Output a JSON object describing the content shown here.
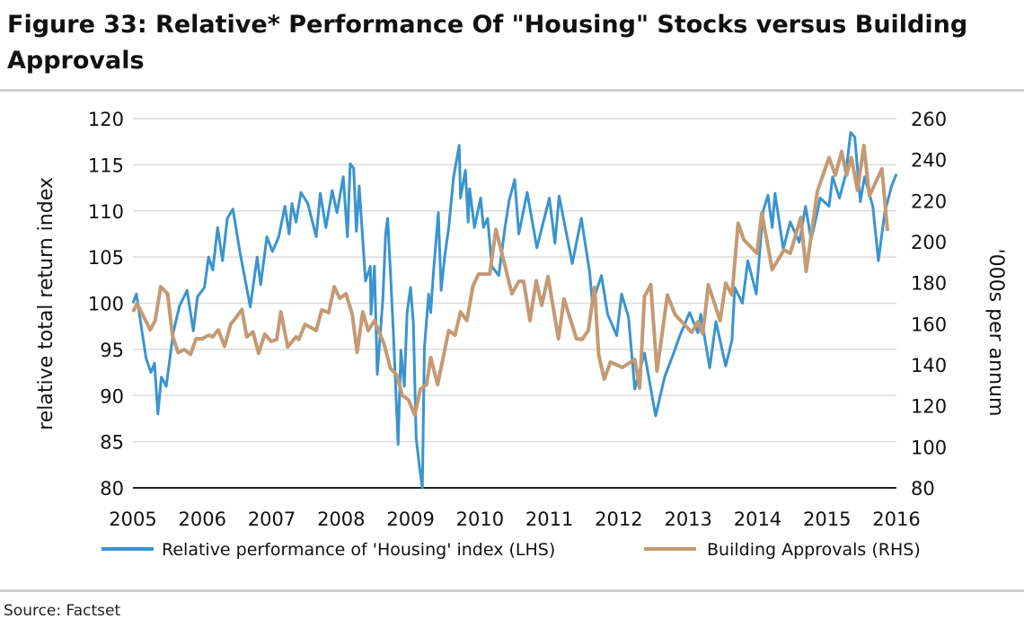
{
  "chart_data": {
    "type": "line",
    "title": "Figure 33: Relative* Performance Of \"Housing\" Stocks versus Building Approvals",
    "ylabel": "relative total return index",
    "y2label": "'000s per annum",
    "xlim": [
      2005,
      2016
    ],
    "ylim": [
      80,
      120
    ],
    "y2lim": [
      80,
      260
    ],
    "x_ticks": [
      "2005",
      "2006",
      "2007",
      "2008",
      "2009",
      "2010",
      "2011",
      "2012",
      "2013",
      "2014",
      "2015",
      "2016"
    ],
    "y_ticks": [
      "120",
      "115",
      "110",
      "105",
      "100",
      "95",
      "90",
      "85",
      "80"
    ],
    "y2_ticks": [
      "260",
      "240",
      "220",
      "200",
      "180",
      "160",
      "140",
      "120",
      "100",
      "80"
    ],
    "grid": true,
    "legend_position": "bottom",
    "series": [
      {
        "name": "Relative performance of 'Housing' index (LHS)",
        "axis": "left",
        "color": "#3a94cf",
        "points": [
          [
            2005.0,
            100
          ],
          [
            2005.05,
            101
          ],
          [
            2005.13,
            97
          ],
          [
            2005.19,
            94
          ],
          [
            2005.26,
            92.5
          ],
          [
            2005.31,
            93.5
          ],
          [
            2005.36,
            88
          ],
          [
            2005.41,
            92
          ],
          [
            2005.48,
            91
          ],
          [
            2005.58,
            96.8
          ],
          [
            2005.67,
            99.7
          ],
          [
            2005.78,
            101.4
          ],
          [
            2005.87,
            97
          ],
          [
            2005.93,
            100.7
          ],
          [
            2006.03,
            101.7
          ],
          [
            2006.09,
            105
          ],
          [
            2006.15,
            103.6
          ],
          [
            2006.22,
            108.2
          ],
          [
            2006.29,
            104.6
          ],
          [
            2006.36,
            109.2
          ],
          [
            2006.44,
            110.2
          ],
          [
            2006.54,
            105.6
          ],
          [
            2006.62,
            102.4
          ],
          [
            2006.69,
            99.6
          ],
          [
            2006.79,
            105
          ],
          [
            2006.84,
            102
          ],
          [
            2006.93,
            107.2
          ],
          [
            2007.01,
            105.6
          ],
          [
            2007.1,
            107.2
          ],
          [
            2007.19,
            110.5
          ],
          [
            2007.25,
            107.5
          ],
          [
            2007.29,
            110.8
          ],
          [
            2007.35,
            108.8
          ],
          [
            2007.42,
            112
          ],
          [
            2007.52,
            110.8
          ],
          [
            2007.64,
            107.2
          ],
          [
            2007.7,
            111.9
          ],
          [
            2007.78,
            108.2
          ],
          [
            2007.87,
            112.2
          ],
          [
            2007.94,
            109.8
          ],
          [
            2008.03,
            113.7
          ],
          [
            2008.09,
            107.2
          ],
          [
            2008.13,
            115.1
          ],
          [
            2008.18,
            114.6
          ],
          [
            2008.22,
            107.8
          ],
          [
            2008.26,
            112.7
          ],
          [
            2008.35,
            102.4
          ],
          [
            2008.42,
            104
          ],
          [
            2008.43,
            98.8
          ],
          [
            2008.48,
            104
          ],
          [
            2008.52,
            92.3
          ],
          [
            2008.6,
            100.4
          ],
          [
            2008.64,
            107.5
          ],
          [
            2008.67,
            109.2
          ],
          [
            2008.71,
            103.3
          ],
          [
            2008.75,
            97.1
          ],
          [
            2008.82,
            84.7
          ],
          [
            2008.86,
            94.9
          ],
          [
            2008.91,
            91
          ],
          [
            2008.95,
            99
          ],
          [
            2009.0,
            101.7
          ],
          [
            2009.04,
            97.8
          ],
          [
            2009.08,
            85.4
          ],
          [
            2009.13,
            82.2
          ],
          [
            2009.17,
            80
          ],
          [
            2009.2,
            95.2
          ],
          [
            2009.26,
            101
          ],
          [
            2009.29,
            99
          ],
          [
            2009.33,
            103.4
          ],
          [
            2009.4,
            109.8
          ],
          [
            2009.44,
            101.4
          ],
          [
            2009.49,
            105
          ],
          [
            2009.55,
            108.2
          ],
          [
            2009.62,
            113.7
          ],
          [
            2009.7,
            117.1
          ],
          [
            2009.72,
            111.4
          ],
          [
            2009.79,
            114.4
          ],
          [
            2009.83,
            108.8
          ],
          [
            2009.85,
            112.4
          ],
          [
            2009.92,
            108.2
          ],
          [
            2010.01,
            111.4
          ],
          [
            2010.05,
            108.2
          ],
          [
            2010.11,
            109.2
          ],
          [
            2010.17,
            104
          ],
          [
            2010.27,
            103
          ],
          [
            2010.36,
            108.2
          ],
          [
            2010.42,
            111.1
          ],
          [
            2010.5,
            113.4
          ],
          [
            2010.56,
            107.5
          ],
          [
            2010.68,
            112
          ],
          [
            2010.82,
            106
          ],
          [
            2011.0,
            111.4
          ],
          [
            2011.08,
            106.5
          ],
          [
            2011.14,
            111.6
          ],
          [
            2011.33,
            104.3
          ],
          [
            2011.46,
            109.2
          ],
          [
            2011.58,
            103.3
          ],
          [
            2011.62,
            100
          ],
          [
            2011.75,
            103
          ],
          [
            2011.84,
            98.8
          ],
          [
            2011.97,
            96.5
          ],
          [
            2012.04,
            101
          ],
          [
            2012.14,
            98.5
          ],
          [
            2012.23,
            90.7
          ],
          [
            2012.37,
            94.6
          ],
          [
            2012.53,
            87.8
          ],
          [
            2012.66,
            92
          ],
          [
            2012.79,
            94.6
          ],
          [
            2012.88,
            96.5
          ],
          [
            2013.02,
            99
          ],
          [
            2013.14,
            96.8
          ],
          [
            2013.18,
            98.8
          ],
          [
            2013.31,
            93
          ],
          [
            2013.4,
            98
          ],
          [
            2013.54,
            93.2
          ],
          [
            2013.63,
            96
          ],
          [
            2013.67,
            101.7
          ],
          [
            2013.78,
            100
          ],
          [
            2013.86,
            104.6
          ],
          [
            2013.98,
            101
          ],
          [
            2014.08,
            110
          ],
          [
            2014.15,
            111.7
          ],
          [
            2014.21,
            108.2
          ],
          [
            2014.25,
            111.9
          ],
          [
            2014.37,
            105.9
          ],
          [
            2014.47,
            108.8
          ],
          [
            2014.6,
            106.6
          ],
          [
            2014.69,
            110.5
          ],
          [
            2014.77,
            106.9
          ],
          [
            2014.86,
            109.8
          ],
          [
            2014.9,
            111.4
          ],
          [
            2015.03,
            110.5
          ],
          [
            2015.08,
            113.7
          ],
          [
            2015.18,
            111.4
          ],
          [
            2015.27,
            114
          ],
          [
            2015.34,
            118.5
          ],
          [
            2015.4,
            118
          ],
          [
            2015.48,
            111
          ],
          [
            2015.54,
            113.7
          ],
          [
            2015.66,
            110.5
          ],
          [
            2015.74,
            104.6
          ],
          [
            2015.83,
            109.8
          ],
          [
            2015.93,
            112.7
          ],
          [
            2016.0,
            114
          ]
        ]
      },
      {
        "name": "Building Approvals (RHS)",
        "axis": "right",
        "color": "#c49a74",
        "points": [
          [
            2005.0,
            165.8
          ],
          [
            2005.06,
            169.8
          ],
          [
            2005.25,
            157
          ],
          [
            2005.32,
            161.5
          ],
          [
            2005.4,
            178
          ],
          [
            2005.5,
            174.6
          ],
          [
            2005.57,
            154.4
          ],
          [
            2005.65,
            146
          ],
          [
            2005.74,
            147.4
          ],
          [
            2005.83,
            145
          ],
          [
            2005.91,
            152.7
          ],
          [
            2006.0,
            152.7
          ],
          [
            2006.09,
            154.4
          ],
          [
            2006.15,
            153.6
          ],
          [
            2006.23,
            157
          ],
          [
            2006.32,
            149
          ],
          [
            2006.41,
            160
          ],
          [
            2006.47,
            162.3
          ],
          [
            2006.57,
            167
          ],
          [
            2006.64,
            153.6
          ],
          [
            2006.73,
            156
          ],
          [
            2006.81,
            145.6
          ],
          [
            2006.9,
            155
          ],
          [
            2006.99,
            151.4
          ],
          [
            2007.07,
            152.3
          ],
          [
            2007.13,
            165.8
          ],
          [
            2007.23,
            148.7
          ],
          [
            2007.35,
            153.6
          ],
          [
            2007.39,
            152.3
          ],
          [
            2007.48,
            159.7
          ],
          [
            2007.64,
            156.7
          ],
          [
            2007.72,
            166.7
          ],
          [
            2007.82,
            165.4
          ],
          [
            2007.9,
            178
          ],
          [
            2007.98,
            172.4
          ],
          [
            2008.07,
            174.6
          ],
          [
            2008.16,
            164.5
          ],
          [
            2008.23,
            146
          ],
          [
            2008.31,
            165.8
          ],
          [
            2008.39,
            156.7
          ],
          [
            2008.48,
            161.5
          ],
          [
            2008.62,
            150
          ],
          [
            2008.71,
            138.2
          ],
          [
            2008.8,
            135.2
          ],
          [
            2008.88,
            125.1
          ],
          [
            2008.97,
            122.9
          ],
          [
            2009.06,
            115.5
          ],
          [
            2009.14,
            128
          ],
          [
            2009.23,
            130.3
          ],
          [
            2009.29,
            143.5
          ],
          [
            2009.39,
            130.3
          ],
          [
            2009.55,
            156.7
          ],
          [
            2009.64,
            154.4
          ],
          [
            2009.72,
            165.8
          ],
          [
            2009.81,
            161.5
          ],
          [
            2009.9,
            178.5
          ],
          [
            2009.98,
            184.2
          ],
          [
            2010.14,
            184.2
          ],
          [
            2010.23,
            206
          ],
          [
            2010.33,
            192.3
          ],
          [
            2010.46,
            174.6
          ],
          [
            2010.56,
            180.7
          ],
          [
            2010.63,
            180.7
          ],
          [
            2010.72,
            161.5
          ],
          [
            2010.81,
            181
          ],
          [
            2010.89,
            169
          ],
          [
            2010.98,
            183
          ],
          [
            2011.13,
            152.7
          ],
          [
            2011.21,
            172
          ],
          [
            2011.39,
            152.7
          ],
          [
            2011.47,
            152.3
          ],
          [
            2011.56,
            156.7
          ],
          [
            2011.65,
            177.7
          ],
          [
            2011.71,
            144.8
          ],
          [
            2011.79,
            133
          ],
          [
            2011.88,
            141.3
          ],
          [
            2012.05,
            138.7
          ],
          [
            2012.23,
            142.6
          ],
          [
            2012.3,
            128.6
          ],
          [
            2012.37,
            173.3
          ],
          [
            2012.46,
            179
          ],
          [
            2012.55,
            136.9
          ],
          [
            2012.7,
            174
          ],
          [
            2012.81,
            164.5
          ],
          [
            2013.05,
            155.8
          ],
          [
            2013.14,
            161
          ],
          [
            2013.21,
            155
          ],
          [
            2013.29,
            179
          ],
          [
            2013.46,
            161.5
          ],
          [
            2013.54,
            179.8
          ],
          [
            2013.63,
            174
          ],
          [
            2013.72,
            209
          ],
          [
            2013.8,
            201
          ],
          [
            2013.99,
            194.3
          ],
          [
            2014.06,
            214
          ],
          [
            2014.21,
            186.4
          ],
          [
            2014.38,
            196
          ],
          [
            2014.47,
            194.3
          ],
          [
            2014.62,
            211.8
          ],
          [
            2014.7,
            185.5
          ],
          [
            2014.86,
            224.5
          ],
          [
            2015.03,
            241
          ],
          [
            2015.12,
            232.4
          ],
          [
            2015.21,
            244
          ],
          [
            2015.28,
            232.4
          ],
          [
            2015.35,
            241
          ],
          [
            2015.44,
            225
          ],
          [
            2015.53,
            246.9
          ],
          [
            2015.61,
            222.3
          ],
          [
            2015.79,
            235.5
          ],
          [
            2015.87,
            205.3
          ]
        ]
      }
    ]
  },
  "source": "Source: Factset"
}
